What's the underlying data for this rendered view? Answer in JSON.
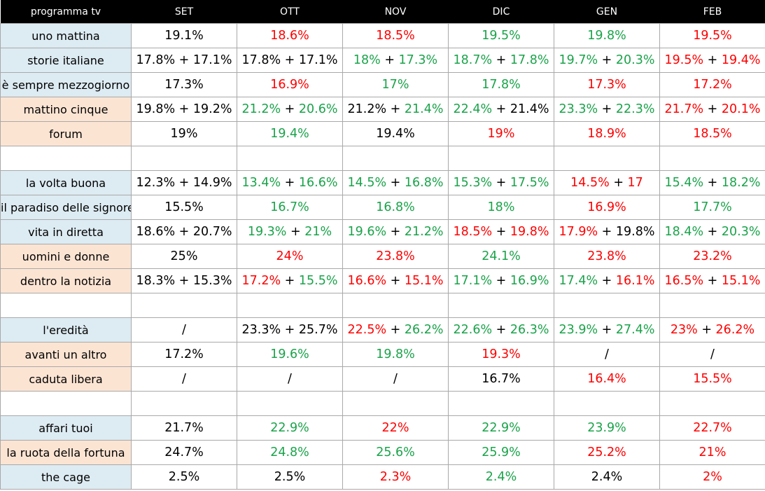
{
  "colors": {
    "green": "#1aa34a",
    "red": "#ff0000",
    "black": "#000000",
    "blue_label": "#ddebf2",
    "peach_label": "#fce4d3",
    "header_bg": "#000000"
  },
  "chart_data": {
    "type": "table",
    "columns": [
      "programma tv",
      "SET",
      "OTT",
      "NOV",
      "DIC",
      "GEN",
      "FEB"
    ],
    "rows": [
      {
        "name": "uno mattina",
        "group": "blue",
        "cells": [
          [
            [
              "19.1%",
              "k"
            ]
          ],
          [
            [
              "18.6%",
              "r"
            ]
          ],
          [
            [
              "18.5%",
              "r"
            ]
          ],
          [
            [
              "19.5%",
              "g"
            ]
          ],
          [
            [
              "19.8%",
              "g"
            ]
          ],
          [
            [
              "19.5%",
              "r"
            ]
          ]
        ]
      },
      {
        "name": "storie italiane",
        "group": "blue",
        "cells": [
          [
            [
              "17.8%",
              "k"
            ],
            [
              "17.1%",
              "k"
            ]
          ],
          [
            [
              "17.8%",
              "k"
            ],
            [
              "17.1%",
              "k"
            ]
          ],
          [
            [
              "18%",
              "g"
            ],
            [
              "17.3%",
              "g"
            ]
          ],
          [
            [
              "18.7%",
              "g"
            ],
            [
              "17.8%",
              "g"
            ]
          ],
          [
            [
              "19.7%",
              "g"
            ],
            [
              "20.3%",
              "g"
            ]
          ],
          [
            [
              "19.5%",
              "r"
            ],
            [
              "19.4%",
              "r"
            ]
          ]
        ]
      },
      {
        "name": "è sempre mezzogiorno",
        "group": "blue",
        "cells": [
          [
            [
              "17.3%",
              "k"
            ]
          ],
          [
            [
              "16.9%",
              "r"
            ]
          ],
          [
            [
              "17%",
              "g"
            ]
          ],
          [
            [
              "17.8%",
              "g"
            ]
          ],
          [
            [
              "17.3%",
              "r"
            ]
          ],
          [
            [
              "17.2%",
              "r"
            ]
          ]
        ]
      },
      {
        "name": "mattino cinque",
        "group": "peach",
        "cells": [
          [
            [
              "19.8%",
              "k"
            ],
            [
              "19.2%",
              "k"
            ]
          ],
          [
            [
              "21.2%",
              "g"
            ],
            [
              "20.6%",
              "g"
            ]
          ],
          [
            [
              "21.2%",
              "k"
            ],
            [
              "21.4%",
              "g"
            ]
          ],
          [
            [
              "22.4%",
              "g"
            ],
            [
              "21.4%",
              "k"
            ]
          ],
          [
            [
              "23.3%",
              "g"
            ],
            [
              "22.3%",
              "g"
            ]
          ],
          [
            [
              "21.7%",
              "r"
            ],
            [
              "20.1%",
              "r"
            ]
          ]
        ]
      },
      {
        "name": "forum",
        "group": "peach",
        "cells": [
          [
            [
              "19%",
              "k"
            ]
          ],
          [
            [
              "19.4%",
              "g"
            ]
          ],
          [
            [
              "19.4%",
              "k"
            ]
          ],
          [
            [
              "19%",
              "r"
            ]
          ],
          [
            [
              "18.9%",
              "r"
            ]
          ],
          [
            [
              "18.5%",
              "r"
            ]
          ]
        ]
      },
      {
        "name": "",
        "group": "blank",
        "cells": [
          [],
          [],
          [],
          [],
          [],
          []
        ]
      },
      {
        "name": "la volta buona",
        "group": "blue",
        "cells": [
          [
            [
              "12.3%",
              "k"
            ],
            [
              "14.9%",
              "k"
            ]
          ],
          [
            [
              "13.4%",
              "g"
            ],
            [
              "16.6%",
              "g"
            ]
          ],
          [
            [
              "14.5%",
              "g"
            ],
            [
              "16.8%",
              "g"
            ]
          ],
          [
            [
              "15.3%",
              "g"
            ],
            [
              "17.5%",
              "g"
            ]
          ],
          [
            [
              "14.5%",
              "r"
            ],
            [
              "17",
              "r"
            ]
          ],
          [
            [
              "15.4%",
              "g"
            ],
            [
              "18.2%",
              "g"
            ]
          ]
        ]
      },
      {
        "name": "il paradiso delle signore",
        "group": "blue",
        "cells": [
          [
            [
              "15.5%",
              "k"
            ]
          ],
          [
            [
              "16.7%",
              "g"
            ]
          ],
          [
            [
              "16.8%",
              "g"
            ]
          ],
          [
            [
              "18%",
              "g"
            ]
          ],
          [
            [
              "16.9%",
              "r"
            ]
          ],
          [
            [
              "17.7%",
              "g"
            ]
          ]
        ]
      },
      {
        "name": "vita in diretta",
        "group": "blue",
        "cells": [
          [
            [
              "18.6%",
              "k"
            ],
            [
              "20.7%",
              "k"
            ]
          ],
          [
            [
              "19.3%",
              "g"
            ],
            [
              "21%",
              "g"
            ]
          ],
          [
            [
              "19.6%",
              "g"
            ],
            [
              "21.2%",
              "g"
            ]
          ],
          [
            [
              "18.5%",
              "r"
            ],
            [
              "19.8%",
              "r"
            ]
          ],
          [
            [
              "17.9%",
              "r"
            ],
            [
              "19.8%",
              "k"
            ]
          ],
          [
            [
              "18.4%",
              "g"
            ],
            [
              "20.3%",
              "g"
            ]
          ]
        ]
      },
      {
        "name": "uomini e donne",
        "group": "peach",
        "cells": [
          [
            [
              "25%",
              "k"
            ]
          ],
          [
            [
              "24%",
              "r"
            ]
          ],
          [
            [
              "23.8%",
              "r"
            ]
          ],
          [
            [
              "24.1%",
              "g"
            ]
          ],
          [
            [
              "23.8%",
              "r"
            ]
          ],
          [
            [
              "23.2%",
              "r"
            ]
          ]
        ]
      },
      {
        "name": "dentro la notizia",
        "group": "peach",
        "cells": [
          [
            [
              "18.3%",
              "k"
            ],
            [
              "15.3%",
              "k"
            ]
          ],
          [
            [
              "17.2%",
              "r"
            ],
            [
              "15.5%",
              "g"
            ]
          ],
          [
            [
              "16.6%",
              "r"
            ],
            [
              "15.1%",
              "r"
            ]
          ],
          [
            [
              "17.1%",
              "g"
            ],
            [
              "16.9%",
              "g"
            ]
          ],
          [
            [
              "17.4%",
              "g"
            ],
            [
              "16.1%",
              "r"
            ]
          ],
          [
            [
              "16.5%",
              "r"
            ],
            [
              "15.1%",
              "r"
            ]
          ]
        ]
      },
      {
        "name": "",
        "group": "blank",
        "cells": [
          [],
          [],
          [],
          [],
          [],
          []
        ]
      },
      {
        "name": "l'eredità",
        "group": "blue",
        "cells": [
          [
            [
              "/",
              "k"
            ]
          ],
          [
            [
              "23.3%",
              "k"
            ],
            [
              "25.7%",
              "k"
            ]
          ],
          [
            [
              "22.5%",
              "r"
            ],
            [
              "26.2%",
              "g"
            ]
          ],
          [
            [
              "22.6%",
              "g"
            ],
            [
              "26.3%",
              "g"
            ]
          ],
          [
            [
              "23.9%",
              "g"
            ],
            [
              "27.4%",
              "g"
            ]
          ],
          [
            [
              "23%",
              "r"
            ],
            [
              "26.2%",
              "r"
            ]
          ]
        ]
      },
      {
        "name": "avanti un altro",
        "group": "peach",
        "cells": [
          [
            [
              "17.2%",
              "k"
            ]
          ],
          [
            [
              "19.6%",
              "g"
            ]
          ],
          [
            [
              "19.8%",
              "g"
            ]
          ],
          [
            [
              "19.3%",
              "r"
            ]
          ],
          [
            [
              "/",
              "k"
            ]
          ],
          [
            [
              "/",
              "k"
            ]
          ]
        ]
      },
      {
        "name": "caduta libera",
        "group": "peach",
        "cells": [
          [
            [
              "/",
              "k"
            ]
          ],
          [
            [
              "/",
              "k"
            ]
          ],
          [
            [
              "/",
              "k"
            ]
          ],
          [
            [
              "16.7%",
              "k"
            ]
          ],
          [
            [
              "16.4%",
              "r"
            ]
          ],
          [
            [
              "15.5%",
              "r"
            ]
          ]
        ]
      },
      {
        "name": "",
        "group": "blank",
        "cells": [
          [],
          [],
          [],
          [],
          [],
          []
        ]
      },
      {
        "name": "affari tuoi",
        "group": "blue",
        "cells": [
          [
            [
              "21.7%",
              "k"
            ]
          ],
          [
            [
              "22.9%",
              "g"
            ]
          ],
          [
            [
              "22%",
              "r"
            ]
          ],
          [
            [
              "22.9%",
              "g"
            ]
          ],
          [
            [
              "23.9%",
              "g"
            ]
          ],
          [
            [
              "22.7%",
              "r"
            ]
          ]
        ]
      },
      {
        "name": "la ruota della fortuna",
        "group": "peach",
        "cells": [
          [
            [
              "24.7%",
              "k"
            ]
          ],
          [
            [
              "24.8%",
              "g"
            ]
          ],
          [
            [
              "25.6%",
              "g"
            ]
          ],
          [
            [
              "25.9%",
              "g"
            ]
          ],
          [
            [
              "25.2%",
              "r"
            ]
          ],
          [
            [
              "21%",
              "r"
            ]
          ]
        ]
      },
      {
        "name": "the cage",
        "group": "blue",
        "cells": [
          [
            [
              "2.5%",
              "k"
            ]
          ],
          [
            [
              "2.5%",
              "k"
            ]
          ],
          [
            [
              "2.3%",
              "r"
            ]
          ],
          [
            [
              "2.4%",
              "g"
            ]
          ],
          [
            [
              "2.4%",
              "k"
            ]
          ],
          [
            [
              "2%",
              "r"
            ]
          ]
        ]
      }
    ]
  }
}
